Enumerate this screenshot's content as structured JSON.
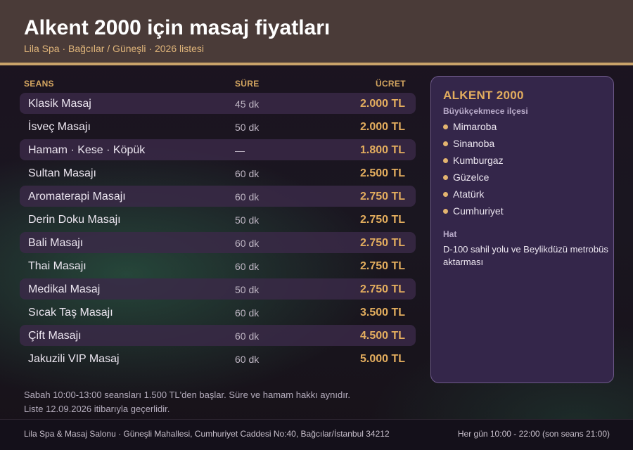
{
  "header": {
    "title": "Alkent 2000 için masaj fiyatları",
    "subtitle": "Lila Spa · Bağcılar / Güneşli · 2026 listesi"
  },
  "table": {
    "columns": {
      "session": "SEANS",
      "duration": "SÜRE",
      "price": "ÜCRET"
    },
    "rows": [
      {
        "name": "Klasik Masaj",
        "duration": "45 dk",
        "price": "2.000 TL"
      },
      {
        "name": "İsveç Masajı",
        "duration": "50 dk",
        "price": "2.000 TL"
      },
      {
        "name": "Hamam · Kese · Köpük",
        "duration": "—",
        "price": "1.800 TL"
      },
      {
        "name": "Sultan Masajı",
        "duration": "60 dk",
        "price": "2.500 TL"
      },
      {
        "name": "Aromaterapi Masajı",
        "duration": "60 dk",
        "price": "2.750 TL"
      },
      {
        "name": "Derin Doku Masajı",
        "duration": "50 dk",
        "price": "2.750 TL"
      },
      {
        "name": "Bali Masajı",
        "duration": "60 dk",
        "price": "2.750 TL"
      },
      {
        "name": "Thai Masajı",
        "duration": "60 dk",
        "price": "2.750 TL"
      },
      {
        "name": "Medikal Masaj",
        "duration": "50 dk",
        "price": "2.750 TL"
      },
      {
        "name": "Sıcak Taş Masajı",
        "duration": "60 dk",
        "price": "3.500 TL"
      },
      {
        "name": "Çift Masajı",
        "duration": "60 dk",
        "price": "4.500 TL"
      },
      {
        "name": "Jakuzili VIP Masaj",
        "duration": "60 dk",
        "price": "5.000 TL"
      }
    ]
  },
  "notes": {
    "line1": "Sabah 10:00-13:00 seansları 1.500 TL'den başlar. Süre ve hamam hakkı aynıdır.",
    "line2": "Liste 12.09.2026 itibarıyla geçerlidir."
  },
  "location_card": {
    "title": "ALKENT 2000",
    "district": "Büyükçekmece ilçesi",
    "neighborhoods": [
      "Mimaroba",
      "Sinanoba",
      "Kumburgaz",
      "Güzelce",
      "Atatürk",
      "Cumhuriyet"
    ],
    "route_label": "Hat",
    "route_text": "D-100 sahil yolu ve Beylikdüzü metrobüs aktarması"
  },
  "footer": {
    "address": "Lila Spa & Masaj Salonu · Güneşli Mahallesi, Cumhuriyet Caddesi No:40, Bağcılar/İstanbul 34212",
    "hours": "Her gün 10:00 - 22:00 (son seans 21:00)"
  },
  "colors": {
    "accent_gold": "#e3ad5e",
    "header_bg": "#4a3b38",
    "card_bg": "#34264a",
    "row_shade": "#3a2a48"
  }
}
